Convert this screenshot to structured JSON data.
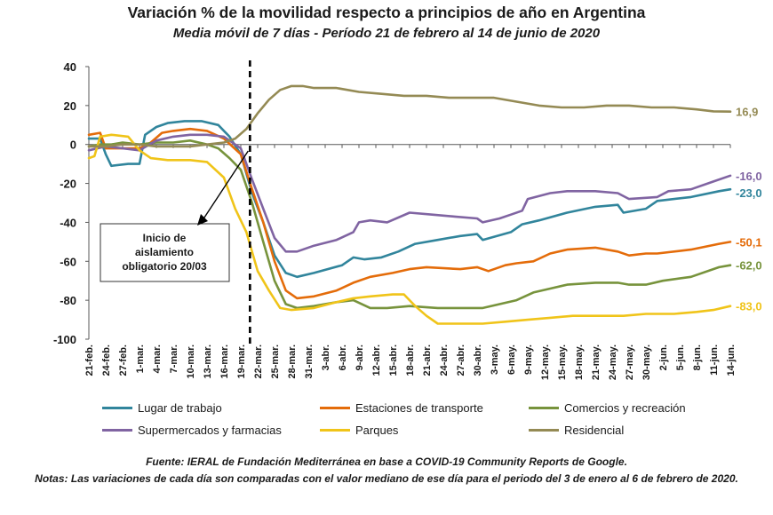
{
  "header": {
    "title": "Variación % de la movilidad respecto a principios de año en Argentina",
    "subtitle": "Media móvil de 7 días - Período 21 de febrero al 14 de junio de 2020"
  },
  "footer": {
    "source": "Fuente: IERAL de Fundación Mediterránea en base a COVID-19 Community Reports de Google.",
    "notes_label": "Notas:",
    "notes_text": "Las variaciones de cada día son comparadas con el valor mediano de ese día para el periodo del 3 de enero al 6 de febrero de 2020."
  },
  "chart_data": {
    "type": "line",
    "title": "Variación % de la movilidad respecto a principios de año en Argentina",
    "subtitle": "Media móvil de 7 días - Período 21 de febrero al 14 de junio de 2020",
    "xlabel": "",
    "ylabel": "",
    "ylim": [
      -100,
      40
    ],
    "yticks": [
      40,
      20,
      0,
      -20,
      -40,
      -60,
      -80,
      -100
    ],
    "grid": false,
    "legend_position": "bottom",
    "x_tick_labels": [
      "21-feb.",
      "24-feb.",
      "27-feb.",
      "1-mar.",
      "4-mar.",
      "7-mar.",
      "10-mar.",
      "13-mar.",
      "16-mar.",
      "19-mar.",
      "22-mar.",
      "25-mar.",
      "28-mar.",
      "31-mar.",
      "3-abr.",
      "6-abr.",
      "9-abr.",
      "12-abr.",
      "15-abr.",
      "18-abr.",
      "21-abr.",
      "24-abr.",
      "27-abr.",
      "30-abr.",
      "3-may.",
      "6-may.",
      "9-may.",
      "12-may.",
      "15-may.",
      "18-may.",
      "21-may.",
      "24-may.",
      "27-may.",
      "30-may.",
      "2-jun.",
      "5-jun.",
      "8-jun.",
      "11-jun.",
      "14-jun."
    ],
    "x_tick_day_index": [
      0,
      3,
      6,
      9,
      12,
      15,
      18,
      21,
      24,
      27,
      30,
      33,
      36,
      39,
      42,
      45,
      48,
      51,
      54,
      57,
      60,
      63,
      66,
      69,
      72,
      75,
      78,
      81,
      84,
      87,
      90,
      93,
      96,
      99,
      102,
      105,
      108,
      111,
      114
    ],
    "annotation": {
      "text": "Inicio del aislamiento obligatorio 20/03",
      "day_index": 28
    },
    "series": [
      {
        "name": "Lugar de trabajo",
        "color": "#31859c",
        "end_label": "-23,0",
        "points": [
          [
            0,
            3
          ],
          [
            2,
            3
          ],
          [
            3,
            -5
          ],
          [
            4,
            -11
          ],
          [
            7,
            -10
          ],
          [
            9,
            -10
          ],
          [
            10,
            5
          ],
          [
            12,
            9
          ],
          [
            14,
            11
          ],
          [
            17,
            12
          ],
          [
            20,
            12
          ],
          [
            23,
            10
          ],
          [
            25,
            4
          ],
          [
            27,
            -5
          ],
          [
            29,
            -25
          ],
          [
            31,
            -40
          ],
          [
            33,
            -57
          ],
          [
            35,
            -66
          ],
          [
            37,
            -68
          ],
          [
            40,
            -66
          ],
          [
            45,
            -62
          ],
          [
            47,
            -58
          ],
          [
            49,
            -59
          ],
          [
            52,
            -58
          ],
          [
            55,
            -55
          ],
          [
            58,
            -51
          ],
          [
            62,
            -49
          ],
          [
            66,
            -47
          ],
          [
            69,
            -46
          ],
          [
            70,
            -49
          ],
          [
            75,
            -45
          ],
          [
            77,
            -41
          ],
          [
            80,
            -39
          ],
          [
            85,
            -35
          ],
          [
            90,
            -32
          ],
          [
            94,
            -31
          ],
          [
            95,
            -35
          ],
          [
            99,
            -33
          ],
          [
            101,
            -29
          ],
          [
            107,
            -27
          ],
          [
            112,
            -24
          ],
          [
            114,
            -23
          ]
        ]
      },
      {
        "name": "Estaciones de transporte",
        "color": "#e46c0a",
        "end_label": "-50,1",
        "points": [
          [
            0,
            5
          ],
          [
            2,
            6
          ],
          [
            3,
            -2
          ],
          [
            6,
            -2
          ],
          [
            9,
            -2
          ],
          [
            11,
            1
          ],
          [
            13,
            6
          ],
          [
            15,
            7
          ],
          [
            18,
            8
          ],
          [
            21,
            7
          ],
          [
            24,
            3
          ],
          [
            27,
            -5
          ],
          [
            29,
            -23
          ],
          [
            31,
            -40
          ],
          [
            33,
            -60
          ],
          [
            35,
            -75
          ],
          [
            37,
            -79
          ],
          [
            40,
            -78
          ],
          [
            44,
            -75
          ],
          [
            47,
            -71
          ],
          [
            50,
            -68
          ],
          [
            54,
            -66
          ],
          [
            57,
            -64
          ],
          [
            60,
            -63
          ],
          [
            66,
            -64
          ],
          [
            69,
            -63
          ],
          [
            71,
            -65
          ],
          [
            74,
            -62
          ],
          [
            76,
            -61
          ],
          [
            79,
            -60
          ],
          [
            82,
            -56
          ],
          [
            85,
            -54
          ],
          [
            90,
            -53
          ],
          [
            94,
            -55
          ],
          [
            96,
            -57
          ],
          [
            99,
            -56
          ],
          [
            101,
            -56
          ],
          [
            107,
            -54
          ],
          [
            112,
            -51
          ],
          [
            114,
            -50
          ]
        ]
      },
      {
        "name": "Comercios y recreación",
        "color": "#77933c",
        "end_label": "-62,0",
        "points": [
          [
            0,
            -1
          ],
          [
            2,
            0
          ],
          [
            4,
            0
          ],
          [
            6,
            1
          ],
          [
            9,
            0
          ],
          [
            12,
            1
          ],
          [
            15,
            1
          ],
          [
            18,
            2
          ],
          [
            21,
            0
          ],
          [
            23,
            -2
          ],
          [
            25,
            -7
          ],
          [
            27,
            -13
          ],
          [
            29,
            -30
          ],
          [
            31,
            -50
          ],
          [
            33,
            -70
          ],
          [
            35,
            -82
          ],
          [
            37,
            -84
          ],
          [
            40,
            -83
          ],
          [
            44,
            -81
          ],
          [
            47,
            -80
          ],
          [
            50,
            -84
          ],
          [
            53,
            -84
          ],
          [
            57,
            -83
          ],
          [
            62,
            -84
          ],
          [
            66,
            -84
          ],
          [
            70,
            -84
          ],
          [
            73,
            -82
          ],
          [
            76,
            -80
          ],
          [
            79,
            -76
          ],
          [
            82,
            -74
          ],
          [
            85,
            -72
          ],
          [
            90,
            -71
          ],
          [
            94,
            -71
          ],
          [
            96,
            -72
          ],
          [
            99,
            -72
          ],
          [
            102,
            -70
          ],
          [
            107,
            -68
          ],
          [
            112,
            -63
          ],
          [
            114,
            -62
          ]
        ]
      },
      {
        "name": "Supermercados y farmacias",
        "color": "#8064a2",
        "end_label": "-16,0",
        "points": [
          [
            0,
            -3
          ],
          [
            3,
            -1
          ],
          [
            6,
            -2
          ],
          [
            9,
            -3
          ],
          [
            12,
            2
          ],
          [
            15,
            4
          ],
          [
            18,
            5
          ],
          [
            21,
            5
          ],
          [
            24,
            4
          ],
          [
            27,
            -2
          ],
          [
            29,
            -18
          ],
          [
            31,
            -33
          ],
          [
            33,
            -48
          ],
          [
            35,
            -55
          ],
          [
            37,
            -55
          ],
          [
            40,
            -52
          ],
          [
            44,
            -49
          ],
          [
            47,
            -45
          ],
          [
            48,
            -40
          ],
          [
            50,
            -39
          ],
          [
            53,
            -40
          ],
          [
            57,
            -35
          ],
          [
            61,
            -36
          ],
          [
            65,
            -37
          ],
          [
            69,
            -38
          ],
          [
            70,
            -40
          ],
          [
            73,
            -38
          ],
          [
            75,
            -36
          ],
          [
            77,
            -34
          ],
          [
            78,
            -28
          ],
          [
            82,
            -25
          ],
          [
            85,
            -24
          ],
          [
            90,
            -24
          ],
          [
            94,
            -25
          ],
          [
            96,
            -28
          ],
          [
            101,
            -27
          ],
          [
            103,
            -24
          ],
          [
            107,
            -23
          ],
          [
            111,
            -19
          ],
          [
            114,
            -16
          ]
        ]
      },
      {
        "name": "Parques",
        "color": "#f0c419",
        "end_label": "-83,0",
        "points": [
          [
            0,
            -7
          ],
          [
            1,
            -6
          ],
          [
            2,
            4
          ],
          [
            4,
            5
          ],
          [
            7,
            4
          ],
          [
            9,
            -3
          ],
          [
            11,
            -7
          ],
          [
            14,
            -8
          ],
          [
            18,
            -8
          ],
          [
            21,
            -9
          ],
          [
            24,
            -17
          ],
          [
            26,
            -33
          ],
          [
            28,
            -45
          ],
          [
            30,
            -65
          ],
          [
            32,
            -75
          ],
          [
            34,
            -84
          ],
          [
            36,
            -85
          ],
          [
            40,
            -84
          ],
          [
            44,
            -81
          ],
          [
            47,
            -79
          ],
          [
            50,
            -78
          ],
          [
            54,
            -77
          ],
          [
            56,
            -77
          ],
          [
            58,
            -83
          ],
          [
            60,
            -88
          ],
          [
            62,
            -92
          ],
          [
            66,
            -92
          ],
          [
            70,
            -92
          ],
          [
            74,
            -91
          ],
          [
            78,
            -90
          ],
          [
            82,
            -89
          ],
          [
            86,
            -88
          ],
          [
            90,
            -88
          ],
          [
            95,
            -88
          ],
          [
            99,
            -87
          ],
          [
            104,
            -87
          ],
          [
            108,
            -86
          ],
          [
            111,
            -85
          ],
          [
            114,
            -83
          ]
        ]
      },
      {
        "name": "Residencial",
        "color": "#948a54",
        "end_label": "16,9",
        "points": [
          [
            0,
            -1
          ],
          [
            3,
            -1
          ],
          [
            6,
            0
          ],
          [
            9,
            0
          ],
          [
            12,
            -1
          ],
          [
            15,
            -1
          ],
          [
            18,
            -1
          ],
          [
            21,
            0
          ],
          [
            24,
            1
          ],
          [
            26,
            3
          ],
          [
            28,
            8
          ],
          [
            30,
            16
          ],
          [
            32,
            23
          ],
          [
            34,
            28
          ],
          [
            36,
            30
          ],
          [
            38,
            30
          ],
          [
            40,
            29
          ],
          [
            44,
            29
          ],
          [
            48,
            27
          ],
          [
            52,
            26
          ],
          [
            56,
            25
          ],
          [
            60,
            25
          ],
          [
            64,
            24
          ],
          [
            68,
            24
          ],
          [
            72,
            24
          ],
          [
            76,
            22
          ],
          [
            80,
            20
          ],
          [
            84,
            19
          ],
          [
            88,
            19
          ],
          [
            92,
            20
          ],
          [
            96,
            20
          ],
          [
            100,
            19
          ],
          [
            104,
            19
          ],
          [
            108,
            18
          ],
          [
            111,
            17
          ],
          [
            114,
            16.9
          ]
        ]
      }
    ]
  }
}
